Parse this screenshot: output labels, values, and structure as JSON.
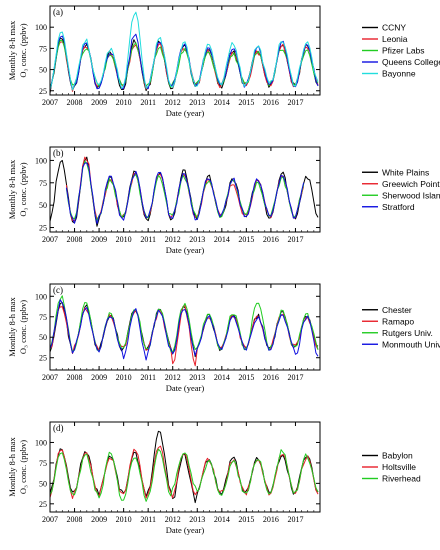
{
  "chart_data": [
    {
      "type": "line",
      "panel_label": "(a)",
      "xlabel": "Date (year)",
      "ylabel_line1": "Monthly 8-h max",
      "ylabel_line2": "O₃ conc. (ppbv)",
      "x_ticks": [
        "2007",
        "2008",
        "2009",
        "2010",
        "2011",
        "2012",
        "2013",
        "2014",
        "2015",
        "2016",
        "2017"
      ],
      "y_ticks": [
        25,
        50,
        75,
        100
      ],
      "xlim": [
        2007.0,
        2018.0
      ],
      "ylim": [
        20,
        125
      ],
      "grid": false,
      "legend_position": "right",
      "series": [
        {
          "name": "CCNY",
          "color": "#000000",
          "summer_peaks": [
            88,
            80,
            70,
            84,
            82,
            78,
            75,
            72,
            74,
            80,
            78
          ],
          "winter_lows": [
            24,
            28,
            27,
            26,
            27,
            28,
            29,
            30,
            30,
            31,
            30
          ],
          "start": 2007.0,
          "end": 2018.0
        },
        {
          "name": "Leonia",
          "color": "#e8202a",
          "summer_peaks": [
            86,
            78,
            68,
            80,
            80,
            76,
            72,
            70,
            70,
            78,
            76
          ],
          "winter_lows": [
            26,
            30,
            29,
            28,
            29,
            30,
            31,
            32,
            31,
            32,
            31
          ],
          "start": 2007.0,
          "end": 2018.0
        },
        {
          "name": "Pfizer Labs",
          "color": "#22cc22",
          "summer_peaks": [
            84,
            76,
            66,
            82,
            78,
            74,
            70,
            68,
            70,
            76,
            74
          ],
          "winter_lows": [
            28,
            32,
            31,
            29,
            30,
            31,
            32,
            33,
            32,
            33,
            33
          ],
          "start": 2007.0,
          "end": 2018.0
        },
        {
          "name": "Queens College",
          "color": "#1010e0",
          "summer_peaks": [
            90,
            82,
            72,
            92,
            84,
            80,
            78,
            75,
            76,
            82,
            80
          ],
          "winter_lows": [
            25,
            29,
            28,
            27,
            28,
            29,
            30,
            30,
            31,
            32,
            31
          ],
          "start": 2007.0,
          "end": 2018.0
        },
        {
          "name": "Bayonne",
          "color": "#22dddd",
          "summer_peaks": [
            94,
            84,
            74,
            118,
            86,
            82,
            80,
            82,
            78,
            84,
            82
          ],
          "winter_lows": [
            27,
            31,
            30,
            28,
            29,
            30,
            31,
            31,
            32,
            33,
            32
          ],
          "start": 2007.0,
          "end": 2018.0
        }
      ]
    },
    {
      "type": "line",
      "panel_label": "(b)",
      "xlabel": "Date (year)",
      "ylabel_line1": "Monthly 8-h max",
      "ylabel_line2": "O₃ conc. (ppbv)",
      "x_ticks": [
        "2007",
        "2008",
        "2009",
        "2010",
        "2011",
        "2012",
        "2013",
        "2014",
        "2015",
        "2016",
        "2017"
      ],
      "y_ticks": [
        25,
        50,
        75,
        100
      ],
      "xlim": [
        2007.0,
        2018.0
      ],
      "ylim": [
        20,
        115
      ],
      "grid": false,
      "legend_position": "right",
      "series": [
        {
          "name": "White Plains",
          "color": "#000000",
          "summer_peaks": [
            100,
            102,
            82,
            88,
            86,
            88,
            82,
            80,
            78,
            86,
            82
          ],
          "winter_lows": [
            30,
            28,
            34,
            34,
            34,
            34,
            35,
            36,
            36,
            36,
            36
          ],
          "start": 2007.0,
          "end": 2018.0
        },
        {
          "name": "Greewich Point",
          "color": "#e8202a",
          "summer_peaks": [
            94,
            104,
            80,
            84,
            84,
            84,
            80,
            74,
            76,
            82,
            80
          ],
          "winter_lows": [
            33,
            32,
            36,
            36,
            36,
            36,
            37,
            38,
            38,
            38,
            38
          ],
          "start": 2007.6,
          "end": 2017.4
        },
        {
          "name": "Sherwood Island",
          "color": "#22cc22",
          "summer_peaks": [
            92,
            98,
            78,
            82,
            82,
            82,
            78,
            76,
            74,
            80,
            78
          ],
          "winter_lows": [
            34,
            33,
            37,
            37,
            37,
            37,
            38,
            39,
            39,
            39,
            39
          ],
          "start": 2007.6,
          "end": 2017.4
        },
        {
          "name": "Stratford",
          "color": "#1010e0",
          "summer_peaks": [
            96,
            100,
            82,
            86,
            86,
            86,
            82,
            78,
            78,
            84,
            82
          ],
          "winter_lows": [
            32,
            31,
            35,
            35,
            35,
            35,
            36,
            37,
            37,
            37,
            37
          ],
          "start": 2007.6,
          "end": 2017.4
        }
      ]
    },
    {
      "type": "line",
      "panel_label": "(c)",
      "xlabel": "Date (year)",
      "ylabel_line1": "Monthly 8-h max",
      "ylabel_line2": "O₃ conc. (ppbv)",
      "x_ticks": [
        "2007",
        "2008",
        "2009",
        "2010",
        "2011",
        "2012",
        "2013",
        "2014",
        "2015",
        "2016",
        "2017"
      ],
      "y_ticks": [
        25,
        50,
        75,
        100
      ],
      "xlim": [
        2007.0,
        2018.0
      ],
      "ylim": [
        10,
        115
      ],
      "grid": false,
      "legend_position": "right",
      "series": [
        {
          "name": "Chester",
          "color": "#000000",
          "summer_peaks": [
            92,
            88,
            78,
            84,
            84,
            86,
            78,
            78,
            76,
            80,
            76
          ],
          "winter_lows": [
            30,
            36,
            34,
            34,
            36,
            28,
            35,
            36,
            36,
            37,
            36
          ],
          "start": 2007.0,
          "end": 2018.0
        },
        {
          "name": "Ramapo",
          "color": "#e8202a",
          "summer_peaks": [
            90,
            86,
            76,
            82,
            82,
            88,
            76,
            76,
            74,
            78,
            74
          ],
          "winter_lows": [
            32,
            37,
            35,
            35,
            36,
            14,
            36,
            37,
            37,
            38,
            37
          ],
          "start": 2007.0,
          "end": 2018.0
        },
        {
          "name": "Rutgers Univ.",
          "color": "#22cc22",
          "summer_peaks": [
            100,
            92,
            80,
            86,
            86,
            90,
            80,
            80,
            94,
            82,
            78
          ],
          "winter_lows": [
            34,
            36,
            35,
            34,
            35,
            33,
            36,
            36,
            36,
            37,
            36
          ],
          "start": 2007.0,
          "end": 2018.0
        },
        {
          "name": "Monmouth Univ.",
          "color": "#1010e0",
          "summer_peaks": [
            94,
            86,
            76,
            84,
            82,
            86,
            76,
            74,
            74,
            76,
            74
          ],
          "winter_lows": [
            32,
            36,
            34,
            22,
            34,
            26,
            35,
            36,
            36,
            36,
            26
          ],
          "start": 2007.0,
          "end": 2018.0
        }
      ]
    },
    {
      "type": "line",
      "panel_label": "(d)",
      "xlabel": "Date (year)",
      "ylabel_line1": "Monthly 8-h max",
      "ylabel_line2": "O₃ conc. (ppbv)",
      "x_ticks": [
        "2007",
        "2008",
        "2009",
        "2010",
        "2011",
        "2012",
        "2013",
        "2014",
        "2015",
        "2016",
        "2017"
      ],
      "y_ticks": [
        25,
        50,
        75,
        100
      ],
      "xlim": [
        2007.0,
        2018.0
      ],
      "ylim": [
        15,
        125
      ],
      "grid": false,
      "legend_position": "right",
      "series": [
        {
          "name": "Babylon",
          "color": "#000000",
          "summer_peaks": [
            92,
            90,
            84,
            86,
            112,
            84,
            80,
            82,
            80,
            86,
            84
          ],
          "winter_lows": [
            36,
            40,
            38,
            36,
            38,
            28,
            38,
            38,
            38,
            39,
            38
          ],
          "start": 2007.0,
          "end": 2018.0
        },
        {
          "name": "Holtsville",
          "color": "#e8202a",
          "summer_peaks": [
            94,
            88,
            82,
            90,
            96,
            86,
            80,
            78,
            80,
            86,
            82
          ],
          "winter_lows": [
            32,
            38,
            36,
            34,
            36,
            34,
            38,
            38,
            38,
            39,
            38
          ],
          "start": 2007.0,
          "end": 2018.0
        },
        {
          "name": "Riverhead",
          "color": "#22cc22",
          "summer_peaks": [
            88,
            84,
            86,
            84,
            90,
            88,
            76,
            76,
            82,
            90,
            84
          ],
          "winter_lows": [
            34,
            36,
            30,
            30,
            34,
            46,
            38,
            37,
            37,
            39,
            38
          ],
          "start": 2007.0,
          "end": 2018.0
        }
      ]
    }
  ]
}
